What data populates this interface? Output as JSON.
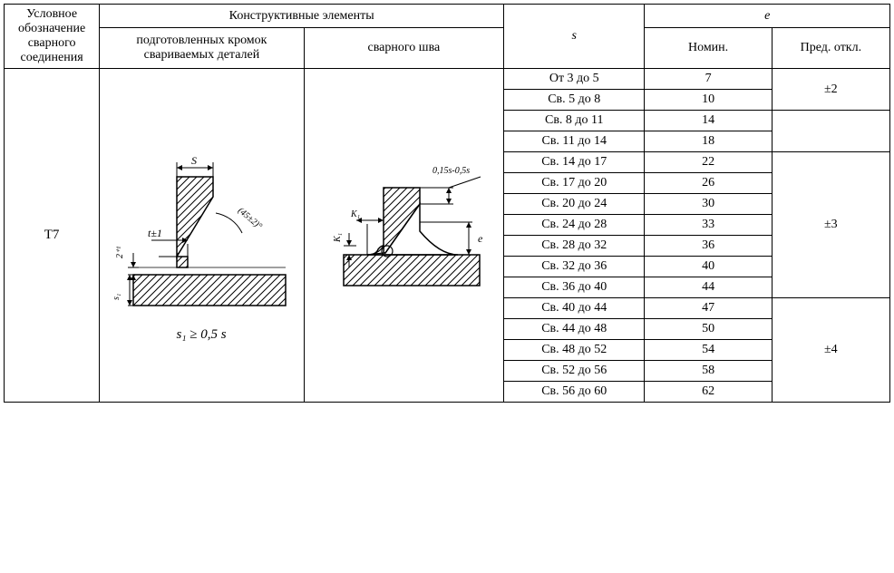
{
  "header": {
    "col1": "Условное обозначение сварного соединения",
    "col_group_2_3": "Конструктивные элементы",
    "col2": "подготовленных кромок свариваемых деталей",
    "col3": "сварного шва",
    "col4": "s",
    "col_group_5_6": "e",
    "col5": "Номин.",
    "col6": "Пред. откл."
  },
  "designation": "Т7",
  "formula": "s₁ ≥ 0,5 s",
  "diagram1": {
    "label_S": "S",
    "label_t": "t±1",
    "label_angle": "(45±2)°",
    "label_2": "2⁺¹",
    "label_s1": "s₁"
  },
  "diagram2": {
    "label_dim": "0,15s-0,5s",
    "label_K1": "K₁",
    "label_e": "e"
  },
  "rows": [
    {
      "s": "От 3 до 5",
      "nom": "7",
      "tol": "±2",
      "tolspan": 2,
      "tolborder": false
    },
    {
      "s": "Св. 5 до 8",
      "nom": "10"
    },
    {
      "s": "Св. 8 до 11",
      "nom": "14",
      "tol": "",
      "tolspan": 2,
      "tolborder": true
    },
    {
      "s": "Св. 11 до 14",
      "nom": "18"
    },
    {
      "s": "Св. 14 до 17",
      "nom": "22",
      "tol": "±3",
      "tolspan": 7,
      "tolborder": false
    },
    {
      "s": "Св. 17 до 20",
      "nom": "26"
    },
    {
      "s": "Св. 20 до 24",
      "nom": "30"
    },
    {
      "s": "Св. 24 до 28",
      "nom": "33"
    },
    {
      "s": "Св. 28 до 32",
      "nom": "36"
    },
    {
      "s": "Св. 32 до 36",
      "nom": "40"
    },
    {
      "s": "Св. 36 до 40",
      "nom": "44"
    },
    {
      "s": "Св. 40 до 44",
      "nom": "47",
      "tol": "±4",
      "tolspan": 5,
      "tolborder": false
    },
    {
      "s": "Св. 44 до 48",
      "nom": "50"
    },
    {
      "s": "Св. 48 до 52",
      "nom": "54"
    },
    {
      "s": "Св. 52 до 56",
      "nom": "58"
    },
    {
      "s": "Св. 56 до 60",
      "nom": "62"
    }
  ],
  "colors": {
    "line": "#000000",
    "hatch": "#000000",
    "bg": "#ffffff"
  }
}
